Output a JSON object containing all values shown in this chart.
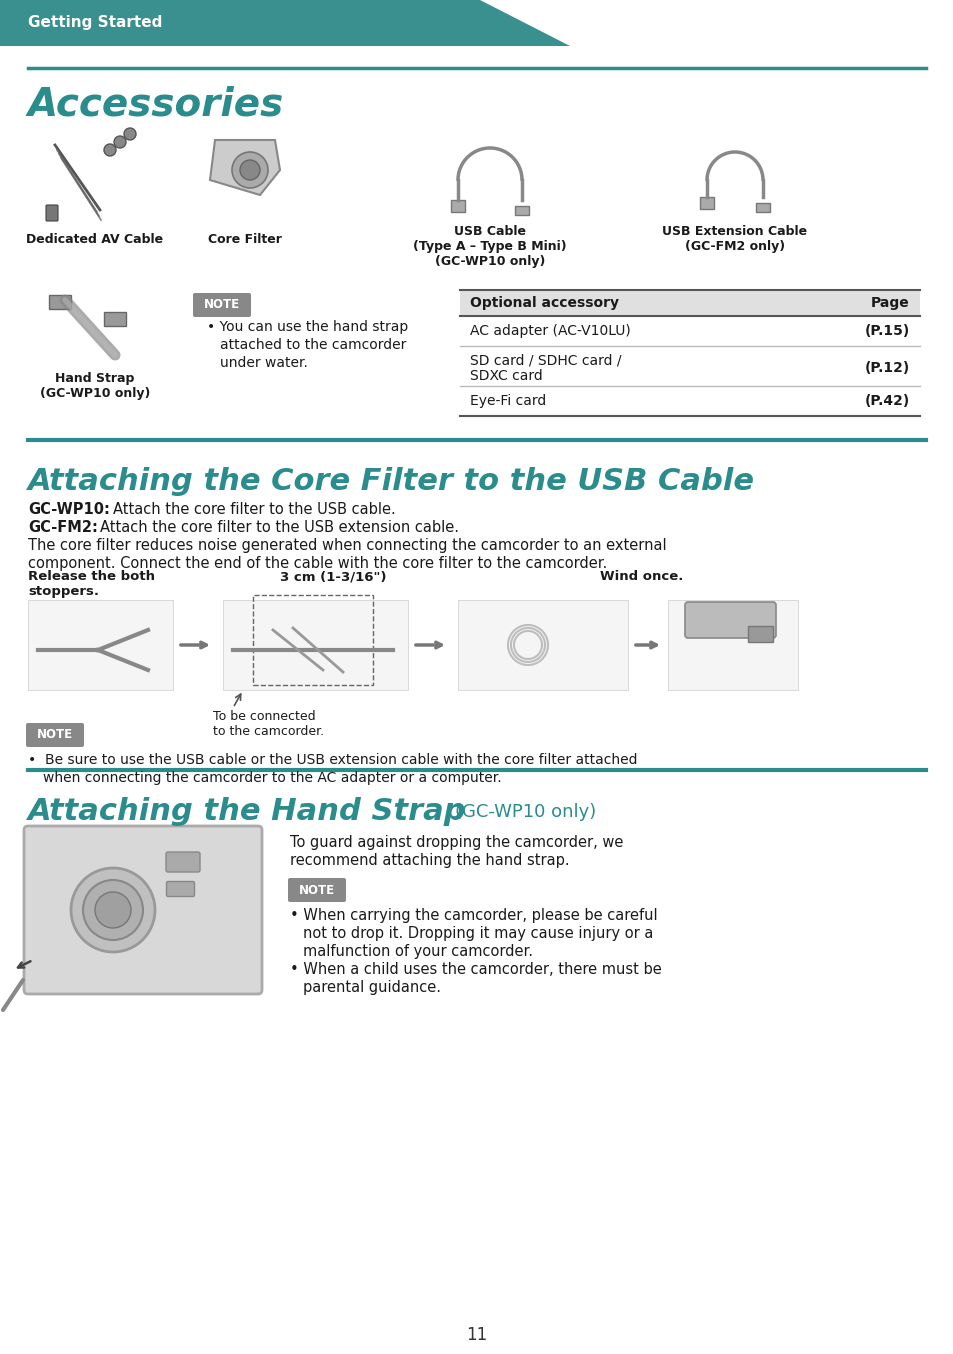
{
  "bg_color": "#ffffff",
  "header_bg": "#3a8f8f",
  "header_text": "Getting Started",
  "header_text_color": "#ffffff",
  "teal_color": "#2a8c8c",
  "section1_title": "Accessories",
  "section2_title": "Attaching the Core Filter to the USB Cable",
  "section3_title": "Attaching the Hand Strap",
  "section3_subtitle": "(GC-WP10 only)",
  "note_text1_bullet": "You can use the hand strap\nattached to the camcorder\nunder water.",
  "table_header": [
    "Optional accessory",
    "Page"
  ],
  "table_rows": [
    [
      "AC adapter (AC-V10LU)",
      "(P.15)"
    ],
    [
      "SD card / SDHC card /\nSDXC card",
      "(P.12)"
    ],
    [
      "Eye-Fi card",
      "(P.42)"
    ]
  ],
  "note2_text": "Be sure to use the USB cable or the USB extension cable with the core filter attached\nwhen connecting the camcorder to the AC adapter or a computer.",
  "section3_body1": "To guard against dropping the camcorder, we",
  "section3_body2": "recommend attaching the hand strap.",
  "note3_bullets": [
    "When carrying the camcorder, please be careful\n  not to drop it. Dropping it may cause injury or a\n  malfunction of your camcorder.",
    "When a child uses the camcorder, there must be\n  parental guidance."
  ],
  "page_number": "11"
}
